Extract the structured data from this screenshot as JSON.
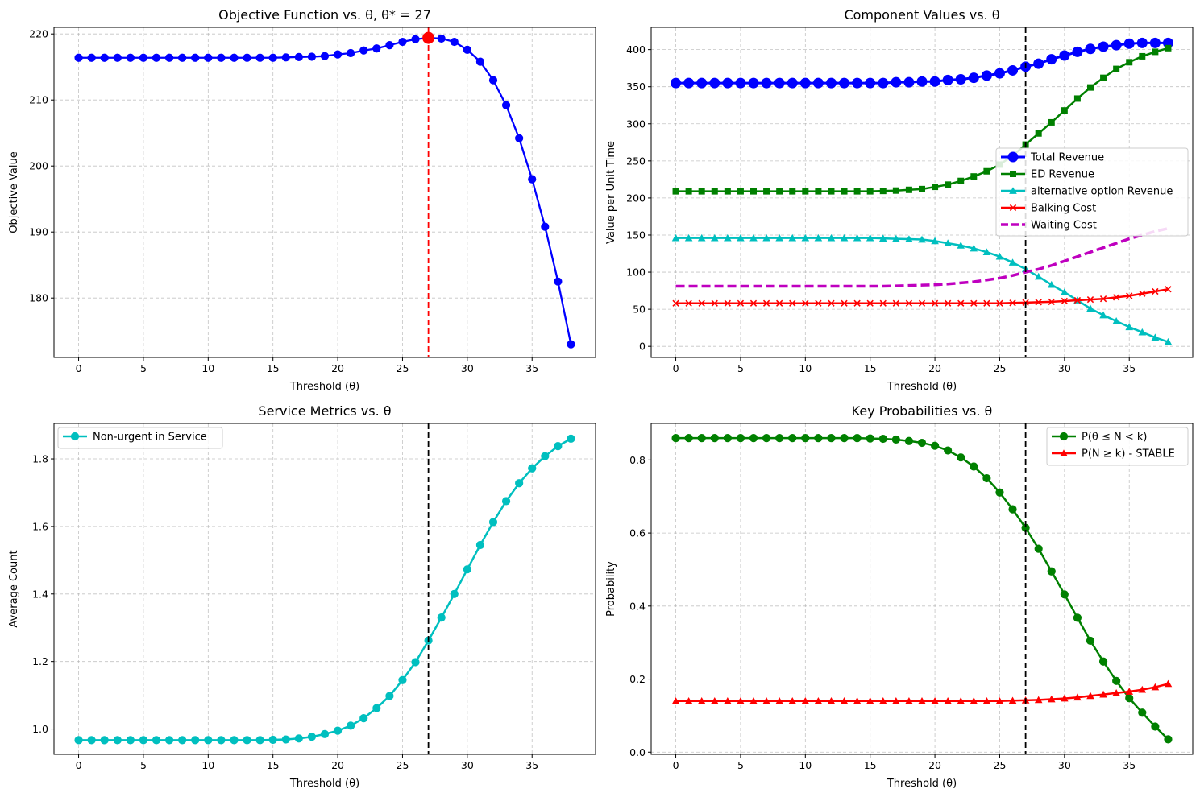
{
  "chart_data": [
    {
      "id": "objective",
      "type": "line",
      "title": "Objective Function vs. θ, θ* = 27",
      "xlabel": "Threshold (θ)",
      "ylabel": "Objective Value",
      "xlim": [
        -1.9,
        39.9
      ],
      "ylim": [
        171.0,
        221.0
      ],
      "xticks": [
        0,
        5,
        10,
        15,
        20,
        25,
        30,
        35
      ],
      "yticks": [
        180,
        190,
        200,
        210,
        220
      ],
      "grid": true,
      "x": [
        0,
        1,
        2,
        3,
        4,
        5,
        6,
        7,
        8,
        9,
        10,
        11,
        12,
        13,
        14,
        15,
        16,
        17,
        18,
        19,
        20,
        21,
        22,
        23,
        24,
        25,
        26,
        27,
        28,
        29,
        30,
        31,
        32,
        33,
        34,
        35,
        36,
        37,
        38
      ],
      "series": [
        {
          "name": "Objective",
          "color": "#0000ff",
          "marker": "circle",
          "values": [
            216.4,
            216.4,
            216.4,
            216.4,
            216.4,
            216.4,
            216.4,
            216.4,
            216.4,
            216.4,
            216.4,
            216.4,
            216.4,
            216.4,
            216.4,
            216.4,
            216.45,
            216.5,
            216.55,
            216.65,
            216.9,
            217.1,
            217.5,
            217.8,
            218.3,
            218.8,
            219.2,
            219.4,
            219.3,
            218.8,
            217.6,
            215.8,
            213.0,
            209.2,
            204.2,
            198.0,
            190.8,
            182.5,
            173.0
          ]
        }
      ],
      "vline": {
        "x": 27,
        "color": "#ff0000"
      },
      "highlight": {
        "x": 27,
        "y": 219.4,
        "color": "#ff0000"
      }
    },
    {
      "id": "components",
      "type": "line",
      "title": "Component Values vs. θ",
      "xlabel": "Threshold (θ)",
      "ylabel": "Value per Unit Time",
      "xlim": [
        -1.9,
        39.9
      ],
      "ylim": [
        -15,
        430
      ],
      "xticks": [
        0,
        5,
        10,
        15,
        20,
        25,
        30,
        35
      ],
      "yticks": [
        0,
        50,
        100,
        150,
        200,
        250,
        300,
        350,
        400
      ],
      "grid": true,
      "legend": "center-right",
      "x": [
        0,
        1,
        2,
        3,
        4,
        5,
        6,
        7,
        8,
        9,
        10,
        11,
        12,
        13,
        14,
        15,
        16,
        17,
        18,
        19,
        20,
        21,
        22,
        23,
        24,
        25,
        26,
        27,
        28,
        29,
        30,
        31,
        32,
        33,
        34,
        35,
        36,
        37,
        38
      ],
      "series": [
        {
          "name": "Total Revenue",
          "color": "#0000ff",
          "marker": "circle-big",
          "width": 3,
          "values": [
            355,
            355,
            355,
            355,
            355,
            355,
            355,
            355,
            355,
            355,
            355,
            355,
            355,
            355,
            355,
            355,
            355,
            356,
            356,
            357,
            357,
            359,
            360,
            362,
            365,
            368,
            372,
            377,
            381,
            387,
            392,
            397,
            401,
            404,
            406,
            408,
            409,
            409,
            409
          ]
        },
        {
          "name": "ED Revenue",
          "color": "#008000",
          "marker": "square",
          "width": 2.5,
          "values": [
            209,
            209,
            209,
            209,
            209,
            209,
            209,
            209,
            209,
            209,
            209,
            209,
            209,
            209,
            209,
            209,
            209.5,
            210,
            211,
            212,
            215,
            218,
            223,
            229,
            236,
            245,
            257,
            272,
            287,
            302,
            318,
            334,
            349,
            362,
            374,
            383,
            391,
            397,
            402
          ]
        },
        {
          "name": "alternative option Revenue",
          "color": "#00bfbf",
          "marker": "triangle",
          "width": 2.5,
          "values": [
            146,
            146,
            146,
            146,
            146,
            146,
            146,
            146,
            146,
            146,
            146,
            146,
            146,
            146,
            146,
            146,
            145.5,
            145,
            144.5,
            144,
            142,
            139,
            136,
            132,
            127,
            121,
            113,
            104,
            94,
            83,
            73,
            62,
            51,
            42,
            34,
            26,
            19,
            12,
            6
          ]
        },
        {
          "name": "Balking Cost",
          "color": "#ff0000",
          "marker": "x",
          "width": 2.5,
          "values": [
            58,
            58,
            58,
            58,
            58,
            58,
            58,
            58,
            58,
            58,
            58,
            58,
            58,
            58,
            58,
            58,
            58,
            58,
            58,
            58,
            58,
            58,
            58,
            58,
            58,
            58,
            58.5,
            59,
            59.5,
            60,
            61,
            62,
            63,
            64,
            66,
            68,
            71,
            74,
            77
          ]
        },
        {
          "name": "Waiting Cost",
          "color": "#bf00bf",
          "marker": "none",
          "width": 3.5,
          "dash": true,
          "values": [
            81,
            81,
            81,
            81,
            81,
            81,
            81,
            81,
            81,
            81,
            81,
            81,
            81,
            81,
            81,
            81,
            81,
            81.5,
            82,
            82.5,
            83,
            84,
            85.5,
            87,
            89.5,
            92,
            95.5,
            100,
            104,
            109,
            115,
            121,
            127,
            133,
            139,
            145,
            150,
            155,
            159
          ]
        }
      ],
      "vline": {
        "x": 27,
        "color": "#000000"
      }
    },
    {
      "id": "service",
      "type": "line",
      "title": "Service Metrics vs. θ",
      "xlabel": "Threshold (θ)",
      "ylabel": "Average Count",
      "xlim": [
        -1.9,
        39.9
      ],
      "ylim": [
        0.925,
        1.905
      ],
      "xticks": [
        0,
        5,
        10,
        15,
        20,
        25,
        30,
        35
      ],
      "yticks": [
        1.0,
        1.2,
        1.4,
        1.6,
        1.8
      ],
      "ytick_labels": [
        "1.0",
        "1.2",
        "1.4",
        "1.6",
        "1.8"
      ],
      "grid": true,
      "legend": "top-left",
      "x": [
        0,
        1,
        2,
        3,
        4,
        5,
        6,
        7,
        8,
        9,
        10,
        11,
        12,
        13,
        14,
        15,
        16,
        17,
        18,
        19,
        20,
        21,
        22,
        23,
        24,
        25,
        26,
        27,
        28,
        29,
        30,
        31,
        32,
        33,
        34,
        35,
        36,
        37,
        38
      ],
      "series": [
        {
          "name": "Non-urgent in Service",
          "color": "#00bfbf",
          "marker": "circle",
          "width": 2.5,
          "values": [
            0.967,
            0.967,
            0.967,
            0.967,
            0.967,
            0.967,
            0.967,
            0.967,
            0.967,
            0.967,
            0.967,
            0.967,
            0.967,
            0.967,
            0.967,
            0.968,
            0.969,
            0.972,
            0.977,
            0.985,
            0.995,
            1.01,
            1.032,
            1.062,
            1.098,
            1.145,
            1.198,
            1.262,
            1.33,
            1.4,
            1.473,
            1.545,
            1.613,
            1.675,
            1.728,
            1.772,
            1.808,
            1.838,
            1.86
          ]
        }
      ],
      "vline": {
        "x": 27,
        "color": "#000000"
      }
    },
    {
      "id": "probabilities",
      "type": "line",
      "title": "Key Probabilities vs. θ",
      "xlabel": "Threshold (θ)",
      "ylabel": "Probability",
      "xlim": [
        -1.9,
        39.9
      ],
      "ylim": [
        -0.006,
        0.9
      ],
      "xticks": [
        0,
        5,
        10,
        15,
        20,
        25,
        30,
        35
      ],
      "yticks": [
        0.0,
        0.2,
        0.4,
        0.6,
        0.8
      ],
      "ytick_labels": [
        "0.0",
        "0.2",
        "0.4",
        "0.6",
        "0.8"
      ],
      "grid": true,
      "legend": "top-right",
      "x": [
        0,
        1,
        2,
        3,
        4,
        5,
        6,
        7,
        8,
        9,
        10,
        11,
        12,
        13,
        14,
        15,
        16,
        17,
        18,
        19,
        20,
        21,
        22,
        23,
        24,
        25,
        26,
        27,
        28,
        29,
        30,
        31,
        32,
        33,
        34,
        35,
        36,
        37,
        38
      ],
      "series": [
        {
          "name": "P(θ ≤ N < k)",
          "color": "#008000",
          "marker": "circle",
          "width": 2.5,
          "values": [
            0.86,
            0.86,
            0.86,
            0.86,
            0.86,
            0.86,
            0.86,
            0.86,
            0.86,
            0.86,
            0.86,
            0.86,
            0.86,
            0.86,
            0.86,
            0.859,
            0.858,
            0.856,
            0.852,
            0.847,
            0.839,
            0.826,
            0.807,
            0.782,
            0.75,
            0.711,
            0.665,
            0.614,
            0.557,
            0.495,
            0.432,
            0.368,
            0.305,
            0.248,
            0.195,
            0.148,
            0.108,
            0.07,
            0.035
          ]
        },
        {
          "name": "P(N ≥ k) - STABLE",
          "color": "#ff0000",
          "marker": "triangle",
          "width": 2.5,
          "values": [
            0.14,
            0.14,
            0.14,
            0.14,
            0.14,
            0.14,
            0.14,
            0.14,
            0.14,
            0.14,
            0.14,
            0.14,
            0.14,
            0.14,
            0.14,
            0.14,
            0.14,
            0.14,
            0.14,
            0.14,
            0.14,
            0.14,
            0.14,
            0.14,
            0.14,
            0.14,
            0.141,
            0.142,
            0.143,
            0.145,
            0.147,
            0.15,
            0.154,
            0.158,
            0.162,
            0.166,
            0.171,
            0.178,
            0.187
          ]
        }
      ],
      "vline": {
        "x": 27,
        "color": "#000000"
      }
    }
  ]
}
